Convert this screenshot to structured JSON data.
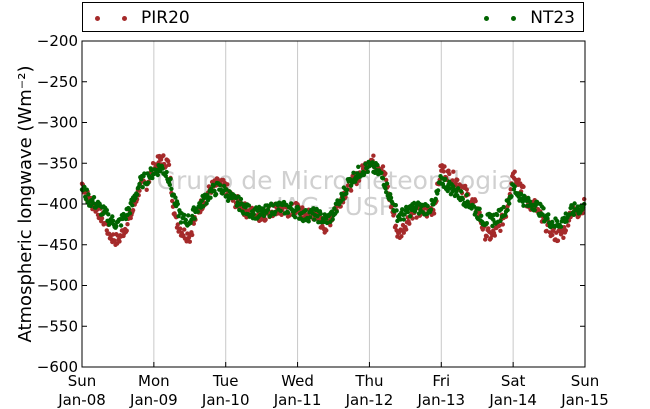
{
  "colors": {
    "pir20": "#a52a2a",
    "nt23": "#006400"
  },
  "legend": {
    "pir20_label": "PIR20",
    "nt23_label": "NT23"
  },
  "watermark": {
    "line1": "Grupo de Micrometeorologia",
    "line2": "IAG - USP"
  },
  "chart_data": {
    "type": "scatter",
    "ylabel": "Atmospheric longwave (Wm⁻²)",
    "xlabel": "",
    "ylim": [
      -600,
      -200
    ],
    "yticks": [
      -200,
      -250,
      -300,
      -350,
      -400,
      -450,
      -500,
      -550,
      -600
    ],
    "xlim": [
      0,
      7
    ],
    "xticks": [
      {
        "x": 0,
        "day": "Sun",
        "date": "Jan-08"
      },
      {
        "x": 1,
        "day": "Mon",
        "date": "Jan-09"
      },
      {
        "x": 2,
        "day": "Tue",
        "date": "Jan-10"
      },
      {
        "x": 3,
        "day": "Wed",
        "date": "Jan-11"
      },
      {
        "x": 4,
        "day": "Thu",
        "date": "Jan-12"
      },
      {
        "x": 5,
        "day": "Fri",
        "date": "Jan-13"
      },
      {
        "x": 6,
        "day": "Sat",
        "date": "Jan-14"
      },
      {
        "x": 7,
        "day": "Sun",
        "date": "Jan-15"
      }
    ],
    "grid": true,
    "legend_position": "top",
    "series": [
      {
        "name": "PIR20",
        "x": [
          0.0,
          0.1,
          0.2,
          0.3,
          0.4,
          0.5,
          0.6,
          0.7,
          0.8,
          0.9,
          1.0,
          1.1,
          1.2,
          1.3,
          1.4,
          1.5,
          1.6,
          1.7,
          1.8,
          1.9,
          2.0,
          2.1,
          2.2,
          2.3,
          2.4,
          2.5,
          2.6,
          2.7,
          2.8,
          2.9,
          3.0,
          3.1,
          3.2,
          3.3,
          3.4,
          3.5,
          3.6,
          3.7,
          3.8,
          3.9,
          4.0,
          4.1,
          4.2,
          4.3,
          4.4,
          4.5,
          4.6,
          4.7,
          4.8,
          4.9,
          5.0,
          5.1,
          5.2,
          5.3,
          5.4,
          5.5,
          5.6,
          5.7,
          5.8,
          5.9,
          6.0,
          6.1,
          6.2,
          6.3,
          6.4,
          6.5,
          6.6,
          6.7,
          6.8,
          6.9,
          7.0
        ],
        "y": [
          -375,
          -395,
          -405,
          -420,
          -440,
          -445,
          -430,
          -410,
          -380,
          -375,
          -355,
          -345,
          -350,
          -420,
          -435,
          -440,
          -410,
          -395,
          -380,
          -375,
          -380,
          -395,
          -400,
          -410,
          -412,
          -415,
          -410,
          -405,
          -410,
          -408,
          -405,
          -415,
          -410,
          -420,
          -430,
          -410,
          -395,
          -380,
          -370,
          -360,
          -345,
          -350,
          -360,
          -400,
          -440,
          -425,
          -410,
          -410,
          -410,
          -405,
          -355,
          -365,
          -370,
          -380,
          -395,
          -405,
          -435,
          -440,
          -430,
          -410,
          -360,
          -375,
          -400,
          -400,
          -420,
          -430,
          -440,
          -435,
          -410,
          -410,
          -400
        ]
      },
      {
        "name": "NT23",
        "x": [
          0.0,
          0.1,
          0.2,
          0.3,
          0.4,
          0.5,
          0.6,
          0.7,
          0.8,
          0.9,
          1.0,
          1.1,
          1.2,
          1.3,
          1.4,
          1.5,
          1.6,
          1.7,
          1.8,
          1.9,
          2.0,
          2.1,
          2.2,
          2.3,
          2.4,
          2.5,
          2.6,
          2.7,
          2.8,
          2.9,
          3.0,
          3.1,
          3.2,
          3.3,
          3.4,
          3.5,
          3.6,
          3.7,
          3.8,
          3.9,
          4.0,
          4.1,
          4.2,
          4.3,
          4.4,
          4.5,
          4.6,
          4.7,
          4.8,
          4.9,
          5.0,
          5.1,
          5.2,
          5.3,
          5.4,
          5.5,
          5.6,
          5.7,
          5.8,
          5.9,
          6.0,
          6.1,
          6.2,
          6.3,
          6.4,
          6.5,
          6.6,
          6.7,
          6.8,
          6.9,
          7.0
        ],
        "y": [
          -380,
          -395,
          -400,
          -410,
          -420,
          -425,
          -415,
          -400,
          -375,
          -368,
          -360,
          -355,
          -365,
          -400,
          -420,
          -420,
          -405,
          -395,
          -385,
          -380,
          -385,
          -395,
          -400,
          -408,
          -410,
          -412,
          -408,
          -404,
          -405,
          -405,
          -410,
          -415,
          -412,
          -415,
          -420,
          -412,
          -395,
          -375,
          -365,
          -358,
          -355,
          -358,
          -370,
          -395,
          -415,
          -412,
          -405,
          -405,
          -405,
          -402,
          -370,
          -378,
          -385,
          -392,
          -400,
          -410,
          -420,
          -420,
          -415,
          -405,
          -380,
          -390,
          -400,
          -400,
          -410,
          -420,
          -425,
          -420,
          -410,
          -405,
          -405
        ]
      }
    ]
  }
}
